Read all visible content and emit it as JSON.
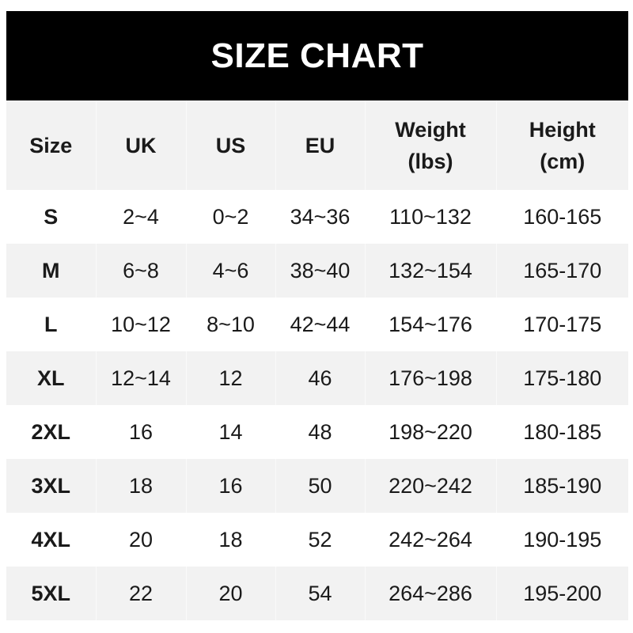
{
  "title": "SIZE CHART",
  "headers": [
    {
      "line1": "Size",
      "line2": ""
    },
    {
      "line1": "UK",
      "line2": ""
    },
    {
      "line1": "US",
      "line2": ""
    },
    {
      "line1": "EU",
      "line2": ""
    },
    {
      "line1": "Weight",
      "line2": "(lbs)"
    },
    {
      "line1": "Height",
      "line2": "(cm)"
    }
  ],
  "rows": [
    [
      "S",
      "2~4",
      "0~2",
      "34~36",
      "110~132",
      "160-165"
    ],
    [
      "M",
      "6~8",
      "4~6",
      "38~40",
      "132~154",
      "165-170"
    ],
    [
      "L",
      "10~12",
      "8~10",
      "42~44",
      "154~176",
      "170-175"
    ],
    [
      "XL",
      "12~14",
      "12",
      "46",
      "176~198",
      "175-180"
    ],
    [
      "2XL",
      "16",
      "14",
      "48",
      "198~220",
      "180-185"
    ],
    [
      "3XL",
      "18",
      "16",
      "50",
      "220~242",
      "185-190"
    ],
    [
      "4XL",
      "20",
      "18",
      "52",
      "242~264",
      "190-195"
    ],
    [
      "5XL",
      "22",
      "20",
      "54",
      "264~286",
      "195-200"
    ]
  ],
  "colors": {
    "header_bg": "#000000",
    "header_text": "#ffffff",
    "alt_row": "#f2f2f2"
  }
}
